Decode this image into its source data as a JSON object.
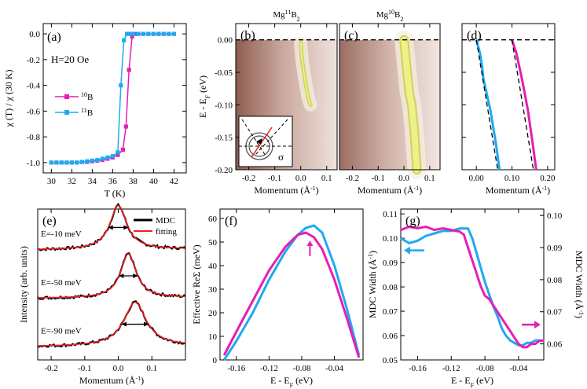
{
  "figure": "Six-panel physics figure: susceptibility, ARPES spectra, dispersions, MDCs, self-energy and MDC width",
  "colors": {
    "b10": "#e61eb4",
    "b11": "#1eaaf0",
    "black": "#000000",
    "red": "#ee2222"
  },
  "chart_data": [
    {
      "panel": "a",
      "type": "line",
      "label": "(a)",
      "annotation": "H=20 Oe",
      "xlabel": "T (K)",
      "ylabel": "χ (T) / χ (30 K)",
      "xlim": [
        29.2,
        43.2
      ],
      "ylim": [
        -1.08,
        0.08
      ],
      "xticks": [
        "30",
        "32",
        "34",
        "36",
        "38",
        "40",
        "42"
      ],
      "yticks": [
        "-1.0",
        "-0.8",
        "-0.6",
        "-0.4",
        "-0.2",
        "0.0"
      ],
      "series": [
        {
          "name": "10B",
          "legend_base": "B",
          "legend_sup": "10",
          "marker": "square",
          "color_key": "b10",
          "x": [
            30,
            30.5,
            31,
            31.5,
            32,
            32.5,
            33,
            33.5,
            34,
            34.5,
            35,
            35.5,
            36,
            36.5,
            37,
            37.3,
            37.6,
            37.9,
            38.2,
            38.5,
            39,
            39.5,
            40,
            40.5,
            41,
            41.5,
            42
          ],
          "y": [
            -1,
            -1,
            -1,
            -1,
            -1,
            -1,
            -0.995,
            -0.995,
            -0.99,
            -0.985,
            -0.98,
            -0.97,
            -0.96,
            -0.94,
            -0.9,
            -0.72,
            -0.28,
            -0.02,
            0,
            0,
            0,
            0,
            0,
            0,
            0,
            0,
            0
          ]
        },
        {
          "name": "11B",
          "legend_base": "B",
          "legend_sup": "11",
          "marker": "square",
          "color_key": "b11",
          "x": [
            30,
            30.5,
            31,
            31.5,
            32,
            32.5,
            33,
            33.5,
            34,
            34.5,
            35,
            35.5,
            36,
            36.5,
            36.8,
            37.1,
            37.4,
            37.7,
            38,
            38.5,
            39,
            39.5,
            40,
            40.5,
            41,
            41.5,
            42
          ],
          "y": [
            -1,
            -1,
            -1,
            -1,
            -1,
            -1,
            -0.995,
            -0.99,
            -0.985,
            -0.98,
            -0.97,
            -0.96,
            -0.95,
            -0.92,
            -0.4,
            -0.05,
            0,
            0,
            0,
            0,
            0,
            0,
            0,
            0,
            0,
            0,
            0
          ]
        }
      ]
    },
    {
      "panel": "b",
      "type": "heatmap",
      "label": "(b)",
      "title_base": "Mg",
      "title_sup": "11",
      "title_end": "B",
      "title_sub": "2",
      "xlabel": "Momentum (Å",
      "xlabel_sup": "-1",
      "xlabel_end": ")",
      "ylabel": "E - E",
      "ylabel_sub": "F",
      "ylabel_end": " (eV)",
      "xlim": [
        -0.25,
        0.14
      ],
      "ylim": [
        -0.2,
        0.025
      ],
      "xticks": [
        "-0.2",
        "-0.1",
        "0.0",
        "0.1"
      ],
      "yticks": [
        "0.00",
        "-0.05",
        "-0.10",
        "-0.15",
        "-0.20"
      ],
      "inset_label": "σ",
      "band": {
        "k": [
          0.0,
          0.005,
          0.012,
          0.02,
          0.027,
          0.033,
          0.038
        ],
        "e": [
          -0.005,
          -0.03,
          -0.05,
          -0.07,
          -0.085,
          -0.095,
          -0.1
        ]
      }
    },
    {
      "panel": "c",
      "type": "heatmap",
      "label": "(c)",
      "title_base": "Mg",
      "title_sup": "10",
      "title_end": "B",
      "title_sub": "2",
      "xlabel": "Momentum (Å",
      "xlabel_sup": "-1",
      "xlabel_end": ")",
      "xlim": [
        -0.25,
        0.14
      ],
      "ylim": [
        -0.2,
        0.025
      ],
      "xticks": [
        "-0.2",
        "-0.1",
        "0.0",
        "0.1"
      ],
      "band": {
        "k": [
          0.0,
          0.01,
          0.02,
          0.03,
          0.04,
          0.045,
          0.05
        ],
        "e": [
          0.0,
          -0.04,
          -0.08,
          -0.1,
          -0.14,
          -0.17,
          -0.2
        ]
      }
    },
    {
      "panel": "d",
      "type": "line",
      "label": "(d)",
      "xlabel": "Momentum (Å",
      "xlabel_sup": "-1",
      "xlabel_end": ")",
      "xlim": [
        -0.04,
        0.22
      ],
      "ylim": [
        -0.2,
        0.025
      ],
      "xticks": [
        "0.00",
        "0.10",
        "0.20"
      ],
      "series": [
        {
          "name": "11B",
          "color_key": "b11",
          "k": [
            0.0,
            0.01,
            0.016,
            0.02,
            0.028,
            0.04,
            0.055,
            0.065
          ],
          "e": [
            0.0,
            -0.02,
            -0.04,
            -0.06,
            -0.08,
            -0.11,
            -0.16,
            -0.2
          ]
        },
        {
          "name": "10B",
          "color_key": "b10",
          "k": [
            0.1,
            0.112,
            0.12,
            0.128,
            0.135,
            0.145,
            0.158,
            0.168
          ],
          "e": [
            0.0,
            -0.02,
            -0.04,
            -0.06,
            -0.08,
            -0.11,
            -0.16,
            -0.2
          ]
        },
        {
          "name": "bare-11B",
          "color_key": "black",
          "dashed": true,
          "k": [
            0.0,
            0.06
          ],
          "e": [
            0.0,
            -0.2
          ]
        },
        {
          "name": "bare-10B",
          "color_key": "black",
          "dashed": true,
          "k": [
            0.1,
            0.16
          ],
          "e": [
            0.0,
            -0.2
          ]
        }
      ]
    },
    {
      "panel": "e",
      "type": "line",
      "label": "(e)",
      "xlabel": "Momentum (Å",
      "xlabel_sup": "-1",
      "xlabel_end": ")",
      "ylabel": "Intensity (arb. units)",
      "xlim": [
        -0.24,
        0.2
      ],
      "xticks": [
        "-0.2",
        "-0.1",
        "0.0",
        "0.1"
      ],
      "legend": [
        "MDC",
        "fitting"
      ],
      "curves": [
        {
          "label": "E=-10 meV",
          "center": 0.0,
          "width": 0.03,
          "offset": 2.2
        },
        {
          "label": "E=-50 meV",
          "center": 0.03,
          "width": 0.028,
          "offset": 1.1
        },
        {
          "label": "E=-90 meV",
          "center": 0.05,
          "width": 0.04,
          "offset": 0.0
        }
      ]
    },
    {
      "panel": "f",
      "type": "line",
      "label": "(f)",
      "xlabel": "E - E",
      "xlabel_sub": "F",
      "xlabel_end": " (eV)",
      "ylabel": "Effective ReΣ (meV)",
      "xlim": [
        -0.18,
        -0.005
      ],
      "ylim": [
        0,
        64
      ],
      "xticks": [
        "-0.16",
        "-0.12",
        "-0.08",
        "-0.04"
      ],
      "yticks": [
        "0",
        "10",
        "20",
        "30",
        "40",
        "50",
        "60"
      ],
      "series": [
        {
          "name": "11B",
          "color_key": "b11",
          "x": [
            -0.175,
            -0.16,
            -0.14,
            -0.12,
            -0.1,
            -0.085,
            -0.075,
            -0.065,
            -0.055,
            -0.04,
            -0.025,
            -0.01
          ],
          "y": [
            0,
            8,
            20,
            34,
            46,
            53,
            56,
            57,
            54,
            40,
            22,
            2
          ]
        },
        {
          "name": "10B",
          "color_key": "b10",
          "x": [
            -0.175,
            -0.16,
            -0.14,
            -0.12,
            -0.1,
            -0.085,
            -0.075,
            -0.065,
            -0.055,
            -0.04,
            -0.025,
            -0.01
          ],
          "y": [
            2,
            12,
            25,
            38,
            48,
            53,
            54,
            52,
            47,
            34,
            18,
            1
          ]
        }
      ]
    },
    {
      "panel": "g",
      "type": "line",
      "label": "(g)",
      "xlabel": "E - E",
      "xlabel_sub": "F",
      "xlabel_end": " (eV)",
      "ylabel": "MDC Width (Å",
      "ylabel_sup": "-1",
      "ylabel_end": ")",
      "ylabel_right": "MDC Width (Å",
      "ylabel_right_sup": "-1",
      "ylabel_right_end": ")",
      "xlim": [
        -0.18,
        -0.01
      ],
      "ylim": [
        0.05,
        0.112
      ],
      "ylim_right": [
        0.055,
        0.102
      ],
      "xticks": [
        "-0.16",
        "-0.12",
        "-0.08",
        "-0.04"
      ],
      "yticks": [
        "0.05",
        "0.06",
        "0.07",
        "0.08",
        "0.09",
        "0.10",
        "0.11"
      ],
      "yticks_right": [
        "0.06",
        "0.07",
        "0.08",
        "0.09",
        "0.10"
      ],
      "series": [
        {
          "name": "11B",
          "axis": "left",
          "color_key": "b11",
          "x": [
            -0.18,
            -0.17,
            -0.16,
            -0.15,
            -0.14,
            -0.13,
            -0.12,
            -0.11,
            -0.1,
            -0.095,
            -0.09,
            -0.085,
            -0.08,
            -0.075,
            -0.07,
            -0.065,
            -0.06,
            -0.055,
            -0.05,
            -0.045,
            -0.04,
            -0.035,
            -0.03,
            -0.025,
            -0.02,
            -0.015,
            -0.01
          ],
          "y": [
            0.1,
            0.098,
            0.099,
            0.101,
            0.102,
            0.103,
            0.103,
            0.104,
            0.104,
            0.1,
            0.094,
            0.088,
            0.082,
            0.077,
            0.072,
            0.068,
            0.063,
            0.06,
            0.058,
            0.057,
            0.056,
            0.056,
            0.057,
            0.057,
            0.058,
            0.058,
            0.058
          ]
        },
        {
          "name": "10B",
          "axis": "right",
          "color_key": "b10",
          "x": [
            -0.18,
            -0.17,
            -0.16,
            -0.15,
            -0.14,
            -0.13,
            -0.12,
            -0.11,
            -0.105,
            -0.1,
            -0.095,
            -0.09,
            -0.085,
            -0.08,
            -0.075,
            -0.07,
            -0.065,
            -0.06,
            -0.055,
            -0.05,
            -0.045,
            -0.04,
            -0.035,
            -0.03,
            -0.025,
            -0.02,
            -0.015,
            -0.01
          ],
          "y": [
            0.0955,
            0.0965,
            0.096,
            0.0965,
            0.0955,
            0.096,
            0.0955,
            0.095,
            0.094,
            0.09,
            0.086,
            0.082,
            0.078,
            0.075,
            0.074,
            0.072,
            0.07,
            0.068,
            0.066,
            0.064,
            0.062,
            0.06,
            0.059,
            0.059,
            0.06,
            0.06,
            0.061,
            0.061
          ]
        }
      ]
    }
  ]
}
